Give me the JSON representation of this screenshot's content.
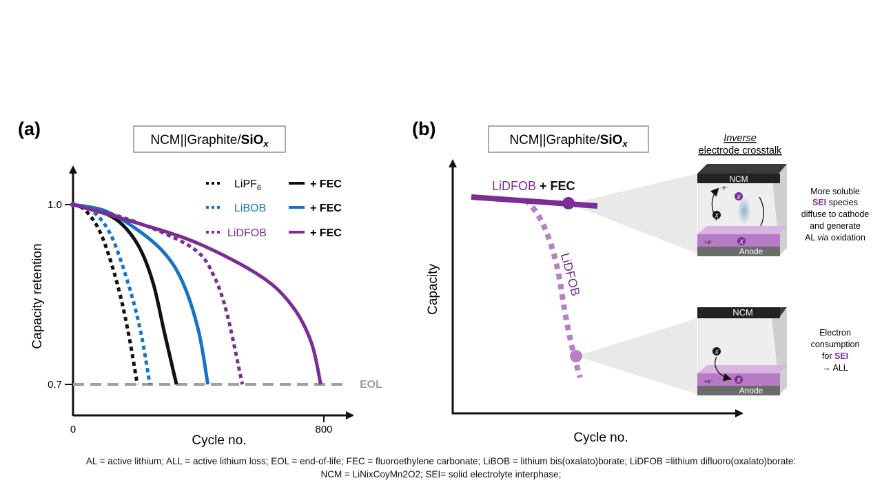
{
  "colors": {
    "lipf6": "#111111",
    "libob": "#1774c5",
    "lidfob": "#7b2d96",
    "lidfob_light": "#b780c4",
    "eol": "#a0a0a0",
    "axis": "#111111",
    "box_border": "#8f8f8f",
    "anode": "#b77bc5",
    "ncm_plate": "#3b3b3b"
  },
  "panel_a": {
    "label": "(a)",
    "box_title_prefix": "NCM||Graphite/",
    "box_title_bold": "SiO",
    "box_title_sub": "x",
    "xlabel": "Cycle no.",
    "ylabel": "Capacity  retention",
    "eol_label": "EOL",
    "legend": {
      "lipf6": "LiPF",
      "lipf6_sub": "6",
      "libob": "LiBOB",
      "lidfob": "LiDFOB",
      "fec": "+ FEC"
    }
  },
  "chart_data": [
    {
      "type": "line",
      "title": "NCM||Graphite/SiOx",
      "xlabel": "Cycle no.",
      "ylabel": "Capacity  retention",
      "xlim": [
        0,
        800
      ],
      "ylim": [
        0.7,
        1.0
      ],
      "x_ticks": [
        "0",
        "800"
      ],
      "y_ticks": [
        "0.7",
        "1.0"
      ],
      "reference_line": {
        "name": "EOL",
        "y": 0.7,
        "style": "dashed"
      },
      "legend_position": "top-right",
      "series": [
        {
          "name": "LiPF6",
          "style": "dotted",
          "color": "#111111",
          "x": [
            0,
            40,
            90,
            140,
            175,
            205
          ],
          "y": [
            1.0,
            0.99,
            0.95,
            0.87,
            0.79,
            0.7
          ]
        },
        {
          "name": "LiPF6 + FEC",
          "style": "solid",
          "color": "#111111",
          "x": [
            0,
            80,
            150,
            210,
            255,
            290,
            330
          ],
          "y": [
            1.0,
            0.99,
            0.97,
            0.93,
            0.87,
            0.79,
            0.7
          ]
        },
        {
          "name": "LiBOB",
          "style": "dotted",
          "color": "#1774c5",
          "x": [
            0,
            60,
            120,
            175,
            215,
            245
          ],
          "y": [
            1.0,
            0.99,
            0.95,
            0.87,
            0.79,
            0.7
          ]
        },
        {
          "name": "LiBOB + FEC",
          "style": "solid",
          "color": "#1774c5",
          "x": [
            0,
            100,
            200,
            290,
            350,
            400,
            430
          ],
          "y": [
            1.0,
            0.99,
            0.96,
            0.92,
            0.87,
            0.79,
            0.7
          ]
        },
        {
          "name": "LiDFOB",
          "style": "dotted",
          "color": "#7b2d96",
          "x": [
            0,
            150,
            300,
            400,
            450,
            490,
            540
          ],
          "y": [
            1.0,
            0.98,
            0.95,
            0.92,
            0.88,
            0.82,
            0.7
          ]
        },
        {
          "name": "LiDFOB + FEC",
          "style": "solid",
          "color": "#7b2d96",
          "x": [
            0,
            200,
            400,
            600,
            700,
            760,
            790
          ],
          "y": [
            1.0,
            0.97,
            0.935,
            0.88,
            0.83,
            0.77,
            0.7
          ]
        }
      ]
    },
    {
      "type": "line",
      "title": "NCM||Graphite/SiOx",
      "xlabel": "Cycle no.",
      "ylabel": "Capacity",
      "series": [
        {
          "name": "LiDFOB + FEC",
          "style": "solid",
          "color": "#7b2d96",
          "x": [
            0,
            0.5
          ],
          "y": [
            0.9,
            0.85
          ]
        },
        {
          "name": "LiDFOB",
          "style": "dotted",
          "color": "#b780c4",
          "x": [
            0,
            0.1,
            0.2,
            0.3,
            0.35
          ],
          "y": [
            0.9,
            0.87,
            0.75,
            0.4,
            0.1
          ]
        }
      ]
    }
  ],
  "panel_b": {
    "label": "(b)",
    "box_title_prefix": "NCM||Graphite/",
    "box_title_bold": "SiO",
    "box_title_sub": "x",
    "xlabel": "Cycle no.",
    "ylabel": "Capacity",
    "series_fec_label_name": "LiDFOB",
    "series_fec_label_suffix": "+ FEC",
    "series_plain_label": "LiDFOB",
    "crosstalk_title_italic": "Inverse",
    "crosstalk_title_rest": "electrode crosstalk",
    "cell_top_label": "NCM",
    "cell_bottom_label": "Anode",
    "species_symbol": "X",
    "electron_minus": "-e⁻",
    "electron_plus": "+e⁻",
    "cell_bottom_top_label": "NCM",
    "cell_bottom_bottom_label": "Anode",
    "note_top": {
      "line1": "More soluble",
      "line2_bold": "SEI",
      "line2_rest": " species",
      "line3": "diffuse to cathode",
      "line4": "and generate",
      "line5_pre": "AL ",
      "line5_italic": "via",
      "line5_post": " oxidation"
    },
    "note_bottom": {
      "line1": "Electron",
      "line2": "consumption",
      "line3_pre": "for ",
      "line3_bold": "SEI",
      "line4": "→ ALL"
    }
  },
  "footnote": {
    "line1": "AL = active lithium;  ALL = active lithium  loss; EOL = end-of-life; FEC = fluoroethylene carbonate; LiBOB = lithium bis(oxalato)borate; LiDFOB =lithium  difluoro(oxalato)borate:",
    "line2": "NCM = LiNixCoyMn2O2; SEI= solid electrolyte interphase;"
  }
}
